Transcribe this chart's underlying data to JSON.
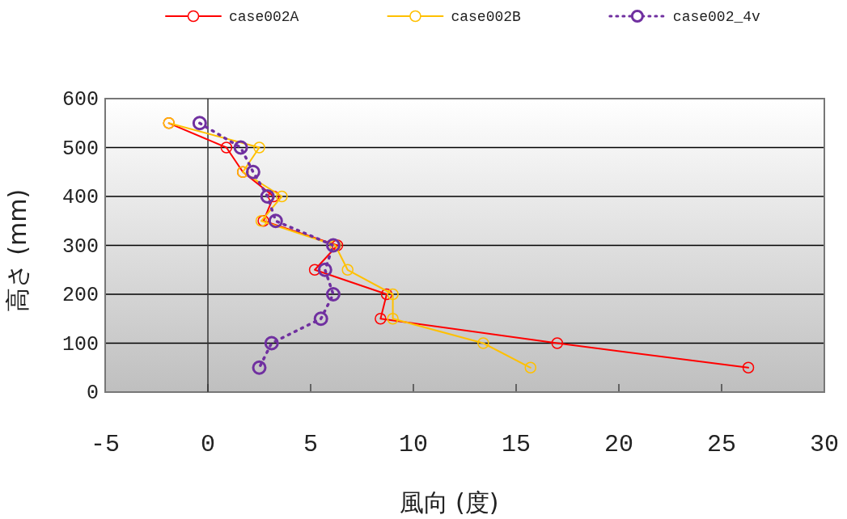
{
  "chart_data": {
    "type": "line",
    "xlabel": "風向 (度)",
    "ylabel": "高さ (mm)",
    "xlim": [
      -5,
      30
    ],
    "xticks": [
      -5,
      0,
      5,
      10,
      15,
      20,
      25,
      30
    ],
    "ylim": [
      0,
      600
    ],
    "yticks": [
      0,
      100,
      200,
      300,
      400,
      500,
      600
    ],
    "grid": "y",
    "legend": "top",
    "marker": "circle",
    "series": [
      {
        "name": "case002A",
        "color": "#ff0000",
        "line_style": "solid",
        "x": [
          -1.9,
          0.9,
          1.7,
          3.2,
          2.7,
          6.3,
          5.2,
          8.7,
          8.4,
          17.0,
          26.3
        ],
        "values": [
          550,
          500,
          450,
          400,
          350,
          300,
          250,
          200,
          150,
          100,
          50
        ]
      },
      {
        "name": "case002B",
        "color": "#ffc000",
        "line_style": "solid",
        "x": [
          -1.9,
          2.5,
          1.7,
          3.6,
          2.6,
          6.2,
          6.8,
          9.0,
          9.0,
          13.4,
          15.7
        ],
        "values": [
          550,
          500,
          450,
          400,
          350,
          300,
          250,
          200,
          150,
          100,
          50
        ]
      },
      {
        "name": "case002_4v",
        "color": "#7030a0",
        "line_style": "dotted",
        "x": [
          -0.4,
          1.6,
          2.2,
          2.9,
          3.3,
          6.1,
          5.7,
          6.1,
          5.5,
          3.1,
          2.5
        ],
        "values": [
          550,
          500,
          450,
          400,
          350,
          300,
          250,
          200,
          150,
          100,
          50
        ]
      }
    ]
  }
}
